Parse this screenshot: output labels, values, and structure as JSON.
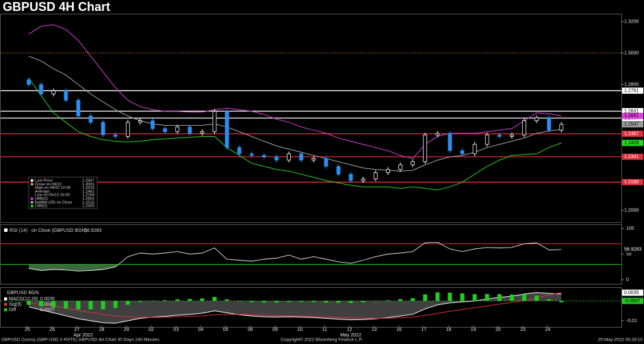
{
  "chart_data": [
    {
      "type": "candlestick",
      "title": "GBPUSD 4H Chart",
      "categories": [
        "25",
        null,
        "26",
        null,
        "27",
        null,
        "28",
        null,
        "29",
        null,
        "02",
        null,
        "03",
        null,
        "04",
        null,
        "05",
        null,
        "06",
        null,
        "09",
        null,
        "10",
        null,
        "11",
        null,
        "12",
        null,
        "13",
        null,
        "16",
        null,
        "17",
        null,
        "18",
        null,
        "19",
        null,
        "20",
        null,
        "23",
        null,
        "24",
        null
      ],
      "months": [
        "Apr 2022",
        "May 2022"
      ],
      "open": [
        1.283,
        1.28,
        1.274,
        1.276,
        1.27,
        1.26,
        1.256,
        1.248,
        1.247,
        1.256,
        1.257,
        1.252,
        1.25,
        1.253,
        1.249,
        1.25,
        1.263,
        1.24,
        1.236,
        1.235,
        1.234,
        1.232,
        1.236,
        1.232,
        1.233,
        1.228,
        1.223,
        1.219,
        1.22,
        1.224,
        1.226,
        1.229,
        1.231,
        1.248,
        1.249,
        1.238,
        1.236,
        1.242,
        1.248,
        1.247,
        1.248,
        1.257,
        1.259,
        1.251
      ],
      "high": [
        1.2845,
        1.2815,
        1.2775,
        1.2775,
        1.2715,
        1.2615,
        1.2575,
        1.2495,
        1.2575,
        1.2585,
        1.2585,
        1.2535,
        1.2545,
        1.2545,
        1.2515,
        1.2645,
        1.2645,
        1.2415,
        1.2375,
        1.2365,
        1.2355,
        1.2375,
        1.2375,
        1.2345,
        1.2345,
        1.2295,
        1.2245,
        1.2215,
        1.2255,
        1.2275,
        1.2305,
        1.2325,
        1.2495,
        1.2505,
        1.2505,
        1.2395,
        1.2435,
        1.2495,
        1.2495,
        1.2495,
        1.2585,
        1.2605,
        1.2605,
        1.2562
      ],
      "low": [
        1.2785,
        1.2725,
        1.2725,
        1.2685,
        1.2585,
        1.2545,
        1.2465,
        1.2455,
        1.2455,
        1.2545,
        1.2505,
        1.2485,
        1.2485,
        1.2475,
        1.2475,
        1.2485,
        1.2385,
        1.2345,
        1.2335,
        1.2325,
        1.2305,
        1.2305,
        1.2305,
        1.2305,
        1.2265,
        1.2215,
        1.2175,
        1.2175,
        1.2185,
        1.2225,
        1.2245,
        1.2275,
        1.2295,
        1.2465,
        1.2365,
        1.2345,
        1.2345,
        1.2405,
        1.2455,
        1.2455,
        1.2465,
        1.2555,
        1.2495,
        1.2495
      ],
      "close": [
        1.28,
        1.274,
        1.276,
        1.27,
        1.26,
        1.256,
        1.248,
        1.247,
        1.256,
        1.257,
        1.252,
        1.25,
        1.253,
        1.249,
        1.25,
        1.263,
        1.24,
        1.236,
        1.235,
        1.234,
        1.232,
        1.236,
        1.232,
        1.233,
        1.228,
        1.223,
        1.219,
        1.22,
        1.224,
        1.226,
        1.229,
        1.231,
        1.248,
        1.249,
        1.238,
        1.236,
        1.242,
        1.248,
        1.247,
        1.248,
        1.257,
        1.259,
        1.251,
        1.2547
      ],
      "up_color": "#ffffff",
      "down_color": "#2a8ff0",
      "series": [
        {
          "color": "#e040e0",
          "values": [
            1.312,
            1.317,
            1.318,
            1.315,
            1.308,
            1.298,
            1.288,
            1.278,
            1.27,
            1.266,
            1.264,
            1.263,
            1.263,
            1.2625,
            1.2625,
            1.264,
            1.265,
            1.264,
            1.263,
            1.261,
            1.258,
            1.256,
            1.253,
            1.251,
            1.249,
            1.246,
            1.244,
            1.242,
            1.24,
            1.238,
            1.235,
            1.233,
            1.242,
            1.247,
            1.249,
            1.249,
            1.249,
            1.25,
            1.251,
            1.252,
            1.257,
            1.262,
            1.2615,
            1.2601
          ]
        },
        {
          "color": "#a8a8a8",
          "values": [
            1.298,
            1.295,
            1.29,
            1.286,
            1.28,
            1.274,
            1.269,
            1.264,
            1.26,
            1.257,
            1.255,
            1.254,
            1.254,
            1.254,
            1.254,
            1.255,
            1.253,
            1.25,
            1.247,
            1.244,
            1.241,
            1.239,
            1.237,
            1.235,
            1.233,
            1.231,
            1.229,
            1.227,
            1.226,
            1.2255,
            1.225,
            1.2255,
            1.229,
            1.232,
            1.234,
            1.235,
            1.237,
            1.24,
            1.242,
            1.244,
            1.246,
            1.249,
            1.2505,
            1.2515
          ]
        },
        {
          "color": "#22dd22",
          "values": [
            1.284,
            1.273,
            1.262,
            1.256,
            1.25,
            1.247,
            1.245,
            1.244,
            1.2435,
            1.244,
            1.245,
            1.2455,
            1.246,
            1.2465,
            1.247,
            1.247,
            1.24,
            1.235,
            1.23,
            1.228,
            1.226,
            1.225,
            1.223,
            1.221,
            1.219,
            1.2175,
            1.216,
            1.215,
            1.215,
            1.215,
            1.214,
            1.215,
            1.214,
            1.213,
            1.215,
            1.218,
            1.223,
            1.228,
            1.232,
            1.235,
            1.2355,
            1.236,
            1.24,
            1.2429
          ]
        }
      ],
      "levels": [
        {
          "value": 1.2761,
          "color": "#ffffff"
        },
        {
          "value": 1.2631,
          "color": "#ffffff"
        },
        {
          "value": 1.2587,
          "color": "#ffffff"
        },
        {
          "value": 1.2487,
          "color": "#e0303a"
        },
        {
          "value": 1.2341,
          "color": "#e0303a"
        },
        {
          "value": 1.218,
          "label": "1.2180",
          "color": "#e0303a"
        }
      ],
      "legend": [
        {
          "label": "Last Price",
          "value": 1.2547,
          "color": "#ffffff"
        },
        {
          "label": "Close on 04/12",
          "value": 1.3001,
          "color": "#e8a030"
        },
        {
          "label": "High on 04/22 12:00",
          "value": 1.2916
        },
        {
          "label": "Average",
          "value": 1.2461
        },
        {
          "label": "Low on 05/13 16:00",
          "value": 1.2156
        },
        {
          "label": "UBB(2)",
          "value": 1.2601,
          "color": "#e040e0"
        },
        {
          "label": "BollMA (20)  on Close",
          "value": 1.2515,
          "color": "#a8a8a8"
        },
        {
          "label": "LBB(2)",
          "value": 1.2429,
          "color": "#22dd22"
        }
      ],
      "ylim": [
        1.1925,
        1.325
      ],
      "yticks": [
        {
          "value": 1.32,
          "label": "1.3200"
        },
        {
          "value": 1.3,
          "label": "1.3000"
        },
        {
          "value": 1.28,
          "label": "1.2800"
        },
        {
          "value": 1.2,
          "label": "1.2000"
        }
      ]
    },
    {
      "type": "line",
      "title": "RSI (14)",
      "subtitle": "on Close (GBPUSD BGN)",
      "color": "#e8e8e8",
      "fill_color": "#3c6a3c",
      "values": [
        22,
        18,
        20,
        19,
        17,
        18,
        20,
        25,
        45,
        52,
        50,
        52,
        55,
        50,
        52,
        62,
        40,
        38,
        36,
        40,
        42,
        48,
        40,
        45,
        40,
        35,
        32,
        38,
        45,
        50,
        52,
        55,
        72,
        73,
        60,
        55,
        60,
        63,
        62,
        63,
        70,
        72,
        58,
        58.9283
      ],
      "levels": [
        {
          "value": 70,
          "color": "#e0303a"
        },
        {
          "value": 30,
          "color": "#22cc22"
        }
      ],
      "ylim": [
        -8,
        108
      ],
      "yticks": [
        0,
        50,
        100
      ]
    },
    {
      "type": "macd",
      "title": "GBPUSD BGN",
      "series": [
        {
          "name": "MACD(12,26)",
          "color": "#ffffff",
          "values": [
            -0.003,
            -0.0045,
            -0.006,
            -0.0075,
            -0.009,
            -0.01,
            -0.011,
            -0.0112,
            -0.01,
            -0.0088,
            -0.0082,
            -0.0078,
            -0.0072,
            -0.0068,
            -0.0062,
            -0.005,
            -0.006,
            -0.007,
            -0.0076,
            -0.008,
            -0.0082,
            -0.008,
            -0.0082,
            -0.0084,
            -0.0088,
            -0.0092,
            -0.0095,
            -0.0094,
            -0.009,
            -0.0084,
            -0.0076,
            -0.0068,
            -0.004,
            -0.002,
            -0.001,
            -0.0005,
            0.0,
            0.001,
            0.0018,
            0.0024,
            0.0035,
            0.0042,
            0.0038,
            0.0035
          ]
        },
        {
          "name": "Sig(9)",
          "color": "#e0303a",
          "values": [
            -0.001,
            -0.0018,
            -0.0027,
            -0.0037,
            -0.0048,
            -0.0058,
            -0.0068,
            -0.0077,
            -0.0081,
            -0.0083,
            -0.0083,
            -0.0082,
            -0.008,
            -0.0078,
            -0.0075,
            -0.007,
            -0.0068,
            -0.0068,
            -0.007,
            -0.0072,
            -0.0074,
            -0.0075,
            -0.0077,
            -0.0078,
            -0.008,
            -0.0083,
            -0.0085,
            -0.0087,
            -0.0088,
            -0.0087,
            -0.0085,
            -0.0082,
            -0.0073,
            -0.0063,
            -0.0052,
            -0.0043,
            -0.0034,
            -0.0025,
            -0.0016,
            -0.0008,
            0.0001,
            0.0015,
            0.003,
            0.0042
          ]
        },
        {
          "name": "Diff",
          "color": "#22cc22",
          "style": "bar",
          "values": [
            -0.002,
            -0.0027,
            -0.0033,
            -0.0038,
            -0.0042,
            -0.0042,
            -0.0042,
            -0.0035,
            -0.0019,
            -0.0005,
            0.0001,
            0.0004,
            0.0008,
            0.001,
            0.0013,
            0.002,
            0.0008,
            -0.0002,
            -0.0006,
            -0.0008,
            -0.0008,
            -0.0005,
            -0.0005,
            -0.0006,
            -0.0008,
            -0.0009,
            -0.001,
            -0.0007,
            -0.0002,
            0.0003,
            0.0009,
            0.0014,
            0.0033,
            0.0043,
            0.0042,
            0.0038,
            0.0034,
            0.0035,
            0.0034,
            0.0032,
            0.0034,
            0.0027,
            0.0008,
            -0.0007
          ]
        }
      ],
      "ylim": [
        -0.0131,
        0.0069
      ],
      "yticks": [
        -0.01
      ]
    }
  ],
  "footer": {
    "left": "GBPUSD Curncy (GBP-USD X-RATE) GBPUSD 4H Chart 30 Days 240 Minutes",
    "center": "Copyright© 2022 Bloomberg Finance L.P.",
    "right": "25-May-2022 00:28:10"
  }
}
